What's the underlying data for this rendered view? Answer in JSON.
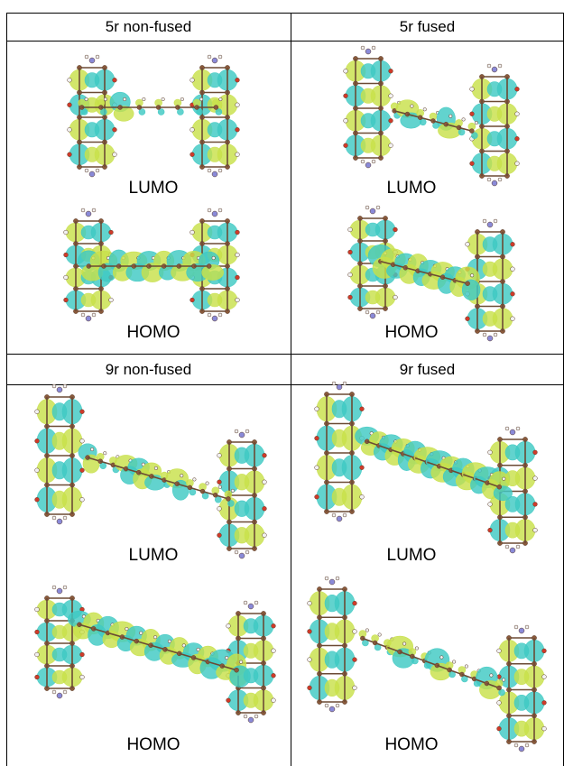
{
  "table": {
    "headers": {
      "r1c1": "5r non-fused",
      "r1c2": "5r fused",
      "r2c1": "9r non-fused",
      "r2c2": "9r fused"
    },
    "orbital_labels": {
      "lumo": "LUMO",
      "homo": "HOMO"
    }
  },
  "colors": {
    "lobe_yellow": "#c8e04a",
    "lobe_cyan": "#3fc9c3",
    "atom_brown": "#8a5a3c",
    "atom_white": "#f2f2f2",
    "atom_red": "#d03a2a",
    "atom_blue": "#8a8ad8",
    "border": "#000000"
  }
}
